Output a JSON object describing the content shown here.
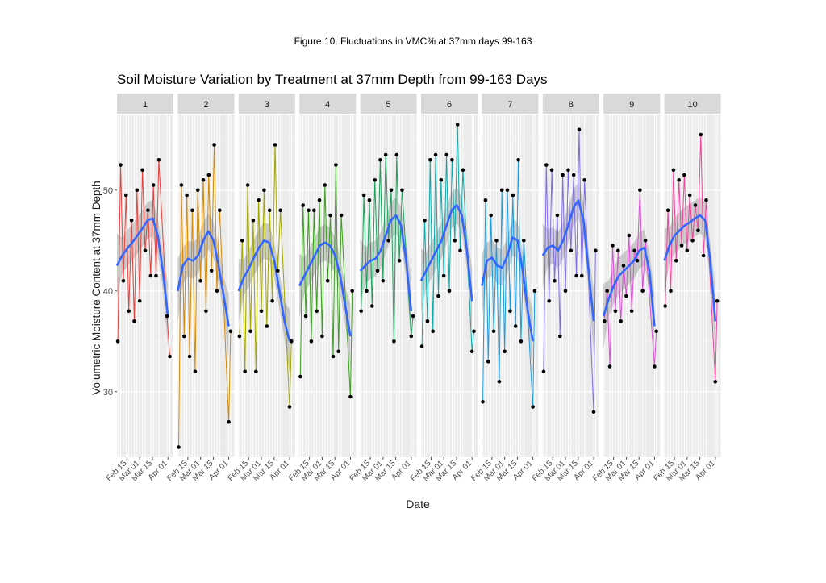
{
  "figure_caption": "Figure 10. Fluctuations in VMC% at 37mm days 99-163",
  "colors": {
    "panel_bg": "#ebebeb",
    "strip_bg": "#d9d9d9",
    "smooth_line": "#3366ff",
    "ribbon": "#999999",
    "points": "#000000"
  },
  "chart_data": {
    "type": "line",
    "title": "Soil Moisture Variation by Treatment at 37mm Depth from 99-163 Days",
    "xlabel": "Date",
    "ylabel": "Volumetric Moisture Content at 37mm Depth",
    "ylim": [
      23.5,
      57.5
    ],
    "y_ticks": [
      30,
      40,
      50
    ],
    "xlim": [
      "2019-02-04",
      "2019-04-07"
    ],
    "x_ticks": [
      "2019-02-15",
      "2019-03-01",
      "2019-03-15",
      "2019-04-01"
    ],
    "x_tick_labels": [
      "Feb 15",
      "Mar 01",
      "Mar 15",
      "Apr 01"
    ],
    "grid": true,
    "legend": "none",
    "facets": [
      {
        "label": "1",
        "color": "#e8413c",
        "dates": [
          "2019-02-05",
          "2019-02-08",
          "2019-02-11",
          "2019-02-14",
          "2019-02-17",
          "2019-02-20",
          "2019-02-23",
          "2019-02-26",
          "2019-03-01",
          "2019-03-04",
          "2019-03-07",
          "2019-03-10",
          "2019-03-13",
          "2019-03-16",
          "2019-03-19",
          "2019-03-22",
          "2019-03-31",
          "2019-04-03"
        ],
        "values": [
          35.0,
          52.5,
          41.0,
          49.5,
          38.0,
          47.0,
          37.0,
          50.0,
          39.0,
          52.0,
          44.0,
          48.0,
          41.5,
          50.5,
          41.5,
          53.0,
          37.5,
          33.5
        ],
        "smooth": [
          42.5,
          43.5,
          44.2,
          44.8,
          45.5,
          46.2,
          47.0,
          47.2,
          45.5,
          42.0,
          37.5
        ]
      },
      {
        "label": "2",
        "color": "#d4880a",
        "dates": [
          "2019-02-05",
          "2019-02-08",
          "2019-02-11",
          "2019-02-14",
          "2019-02-17",
          "2019-02-20",
          "2019-02-23",
          "2019-02-26",
          "2019-03-01",
          "2019-03-04",
          "2019-03-07",
          "2019-03-10",
          "2019-03-13",
          "2019-03-16",
          "2019-03-19",
          "2019-03-22",
          "2019-04-01",
          "2019-04-03"
        ],
        "values": [
          24.5,
          50.5,
          35.5,
          49.5,
          33.5,
          48.0,
          32.0,
          50.0,
          41.0,
          51.0,
          38.0,
          51.5,
          42.0,
          54.5,
          40.0,
          48.0,
          27.0,
          36.0
        ],
        "smooth": [
          40.0,
          42.5,
          43.2,
          43.0,
          43.5,
          45.0,
          45.9,
          45.0,
          42.5,
          39.5,
          36.5
        ]
      },
      {
        "label": "3",
        "color": "#a3a500",
        "dates": [
          "2019-02-05",
          "2019-02-08",
          "2019-02-11",
          "2019-02-14",
          "2019-02-17",
          "2019-02-20",
          "2019-02-23",
          "2019-02-26",
          "2019-03-01",
          "2019-03-04",
          "2019-03-07",
          "2019-03-10",
          "2019-03-13",
          "2019-03-16",
          "2019-03-19",
          "2019-03-22",
          "2019-04-01",
          "2019-04-03"
        ],
        "values": [
          35.5,
          45.0,
          32.0,
          50.5,
          36.0,
          47.0,
          32.0,
          49.0,
          38.0,
          50.0,
          36.5,
          48.0,
          39.0,
          54.5,
          42.0,
          48.0,
          28.5,
          35.0
        ],
        "smooth": [
          40.0,
          41.3,
          42.2,
          43.3,
          44.3,
          45.0,
          44.8,
          43.0,
          40.0,
          37.0,
          35.0
        ]
      },
      {
        "label": "4",
        "color": "#3b9e1f",
        "dates": [
          "2019-02-05",
          "2019-02-08",
          "2019-02-11",
          "2019-02-14",
          "2019-02-17",
          "2019-02-20",
          "2019-02-23",
          "2019-02-26",
          "2019-03-01",
          "2019-03-04",
          "2019-03-07",
          "2019-03-10",
          "2019-03-13",
          "2019-03-16",
          "2019-03-19",
          "2019-03-22",
          "2019-04-01",
          "2019-04-03"
        ],
        "values": [
          31.5,
          48.5,
          37.5,
          48.0,
          35.0,
          48.0,
          38.0,
          49.0,
          35.5,
          50.5,
          41.0,
          47.5,
          33.5,
          52.5,
          34.0,
          47.5,
          29.5,
          40.0
        ],
        "smooth": [
          40.5,
          41.5,
          42.5,
          43.5,
          44.5,
          44.8,
          44.5,
          43.5,
          41.5,
          38.5,
          35.5
        ]
      },
      {
        "label": "5",
        "color": "#1ca05a",
        "dates": [
          "2019-02-05",
          "2019-02-08",
          "2019-02-11",
          "2019-02-14",
          "2019-02-17",
          "2019-02-20",
          "2019-02-23",
          "2019-02-26",
          "2019-03-01",
          "2019-03-04",
          "2019-03-07",
          "2019-03-10",
          "2019-03-13",
          "2019-03-16",
          "2019-03-19",
          "2019-03-22",
          "2019-04-01",
          "2019-04-03"
        ],
        "values": [
          38.0,
          49.5,
          40.0,
          49.0,
          38.5,
          51.0,
          42.0,
          53.0,
          41.0,
          53.5,
          45.0,
          50.0,
          35.0,
          53.5,
          43.0,
          50.0,
          35.5,
          37.5
        ],
        "smooth": [
          42.0,
          42.5,
          43.0,
          43.2,
          44.0,
          45.5,
          47.0,
          47.5,
          46.5,
          43.0,
          38.0
        ]
      },
      {
        "label": "6",
        "color": "#13a8a8",
        "dates": [
          "2019-02-05",
          "2019-02-08",
          "2019-02-11",
          "2019-02-14",
          "2019-02-17",
          "2019-02-20",
          "2019-02-23",
          "2019-02-26",
          "2019-03-01",
          "2019-03-04",
          "2019-03-07",
          "2019-03-10",
          "2019-03-13",
          "2019-03-16",
          "2019-03-19",
          "2019-03-22",
          "2019-04-01",
          "2019-04-03"
        ],
        "values": [
          34.5,
          47.0,
          37.0,
          53.0,
          36.0,
          53.5,
          39.5,
          51.0,
          41.5,
          53.5,
          40.0,
          53.0,
          45.0,
          56.5,
          44.0,
          52.0,
          34.0,
          36.0
        ],
        "smooth": [
          41.0,
          42.0,
          43.0,
          44.0,
          45.0,
          46.5,
          48.0,
          48.5,
          47.5,
          44.0,
          39.0
        ]
      },
      {
        "label": "7",
        "color": "#1a9ce0",
        "dates": [
          "2019-02-05",
          "2019-02-08",
          "2019-02-11",
          "2019-02-14",
          "2019-02-17",
          "2019-02-20",
          "2019-02-23",
          "2019-02-26",
          "2019-03-01",
          "2019-03-04",
          "2019-03-07",
          "2019-03-10",
          "2019-03-13",
          "2019-03-16",
          "2019-03-19",
          "2019-03-22",
          "2019-04-01",
          "2019-04-03"
        ],
        "values": [
          29.0,
          49.0,
          33.0,
          47.5,
          36.0,
          45.0,
          31.0,
          50.0,
          34.0,
          50.0,
          38.0,
          49.5,
          36.5,
          53.0,
          35.0,
          45.0,
          28.5,
          40.0
        ],
        "smooth": [
          40.5,
          43.0,
          43.3,
          42.5,
          42.3,
          43.5,
          45.3,
          45.0,
          42.0,
          38.0,
          35.0
        ]
      },
      {
        "label": "8",
        "color": "#7f6be6",
        "dates": [
          "2019-02-05",
          "2019-02-08",
          "2019-02-11",
          "2019-02-14",
          "2019-02-17",
          "2019-02-20",
          "2019-02-23",
          "2019-02-26",
          "2019-03-01",
          "2019-03-04",
          "2019-03-07",
          "2019-03-10",
          "2019-03-13",
          "2019-03-16",
          "2019-03-19",
          "2019-03-22",
          "2019-04-01",
          "2019-04-03"
        ],
        "values": [
          32.0,
          52.5,
          39.0,
          52.0,
          41.0,
          47.5,
          35.5,
          51.5,
          40.0,
          52.0,
          44.0,
          51.5,
          41.5,
          56.0,
          41.5,
          51.0,
          28.0,
          44.0
        ],
        "smooth": [
          43.5,
          44.3,
          44.5,
          44.0,
          45.0,
          46.5,
          48.2,
          49.0,
          47.0,
          42.0,
          37.0
        ]
      },
      {
        "label": "9",
        "color": "#d94fd1",
        "dates": [
          "2019-02-05",
          "2019-02-08",
          "2019-02-11",
          "2019-02-14",
          "2019-02-17",
          "2019-02-20",
          "2019-02-23",
          "2019-02-26",
          "2019-03-01",
          "2019-03-04",
          "2019-03-07",
          "2019-03-10",
          "2019-03-13",
          "2019-03-16",
          "2019-03-19",
          "2019-03-22",
          "2019-04-01",
          "2019-04-03"
        ],
        "values": [
          37.0,
          40.0,
          32.5,
          44.5,
          38.0,
          44.0,
          37.0,
          42.5,
          39.5,
          45.5,
          38.0,
          44.0,
          43.0,
          50.0,
          40.0,
          45.0,
          32.5,
          36.0
        ],
        "smooth": [
          37.5,
          39.2,
          40.5,
          41.5,
          42.0,
          42.5,
          43.0,
          44.0,
          44.3,
          42.0,
          36.5
        ]
      },
      {
        "label": "10",
        "color": "#f0449d",
        "dates": [
          "2019-02-05",
          "2019-02-08",
          "2019-02-11",
          "2019-02-14",
          "2019-02-17",
          "2019-02-20",
          "2019-02-23",
          "2019-02-26",
          "2019-03-01",
          "2019-03-04",
          "2019-03-07",
          "2019-03-10",
          "2019-03-13",
          "2019-03-16",
          "2019-03-19",
          "2019-03-22",
          "2019-04-01",
          "2019-04-03"
        ],
        "values": [
          38.5,
          48.0,
          40.0,
          52.0,
          43.0,
          51.0,
          44.5,
          51.5,
          44.0,
          49.5,
          45.0,
          48.5,
          46.0,
          55.5,
          43.5,
          49.0,
          31.0,
          39.0
        ],
        "smooth": [
          43.0,
          44.5,
          45.5,
          46.0,
          46.5,
          46.8,
          47.2,
          47.5,
          47.0,
          43.0,
          37.0
        ]
      }
    ]
  }
}
